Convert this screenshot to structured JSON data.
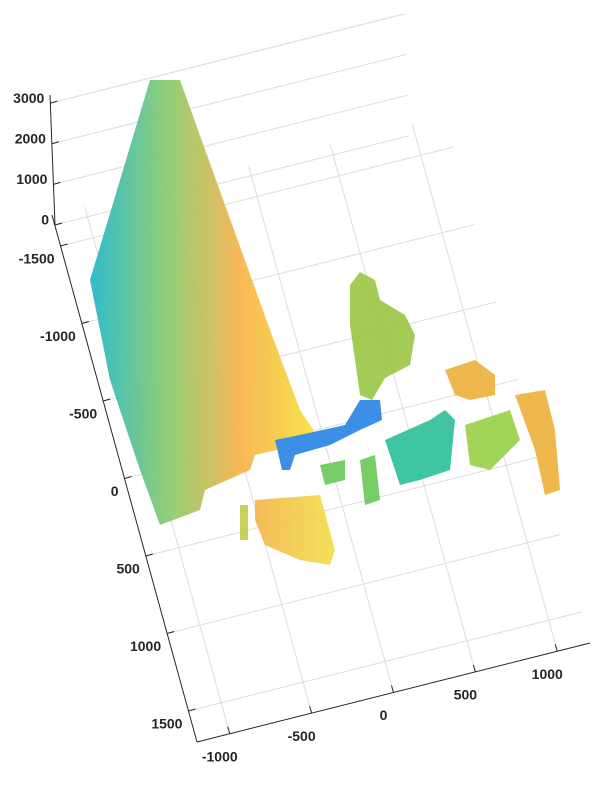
{
  "chart_data": {
    "type": "scatter3",
    "xlim": [
      -1200,
      1200
    ],
    "xticks": [
      -1000,
      -500,
      0,
      500,
      1000
    ],
    "ylim": [
      -1700,
      1700
    ],
    "yticks": [
      -1500,
      -1000,
      -500,
      0,
      500,
      1000,
      1500
    ],
    "zlim": [
      0,
      3200
    ],
    "zticks": [
      0,
      1000,
      2000,
      3000
    ],
    "grid": true
  }
}
